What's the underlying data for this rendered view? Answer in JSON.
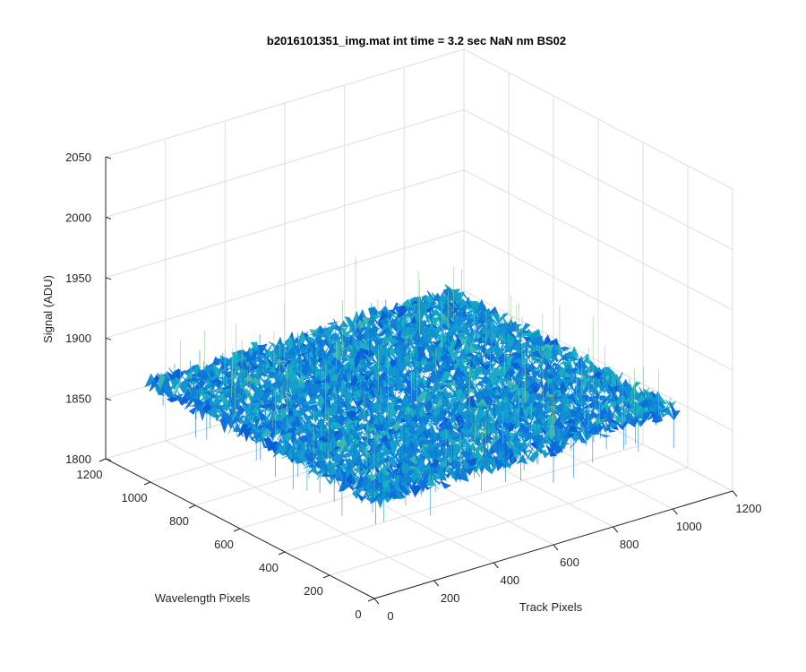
{
  "chart_data": {
    "type": "surface",
    "title": "b2016101351_img.mat int time = 3.2 sec  NaN nm BS02",
    "xlabel": "Track Pixels",
    "ylabel": "Wavelength Pixels",
    "zlabel": "Signal (ADU)",
    "xlim": [
      0,
      1200
    ],
    "ylim": [
      0,
      1200
    ],
    "zlim": [
      1800,
      2050
    ],
    "xticks": [
      "0",
      "200",
      "400",
      "600",
      "800",
      "1000",
      "1200"
    ],
    "yticks": [
      "0",
      "200",
      "400",
      "600",
      "800",
      "1000",
      "1200"
    ],
    "zticks": [
      "1800",
      "1850",
      "1900",
      "1950",
      "2000",
      "2050"
    ],
    "grid": true,
    "surface": {
      "x_range": [
        0,
        1024
      ],
      "y_range": [
        0,
        1024
      ],
      "z_mean": 1880,
      "z_min": 1835,
      "z_max": 1985,
      "colormap": "parula"
    }
  }
}
